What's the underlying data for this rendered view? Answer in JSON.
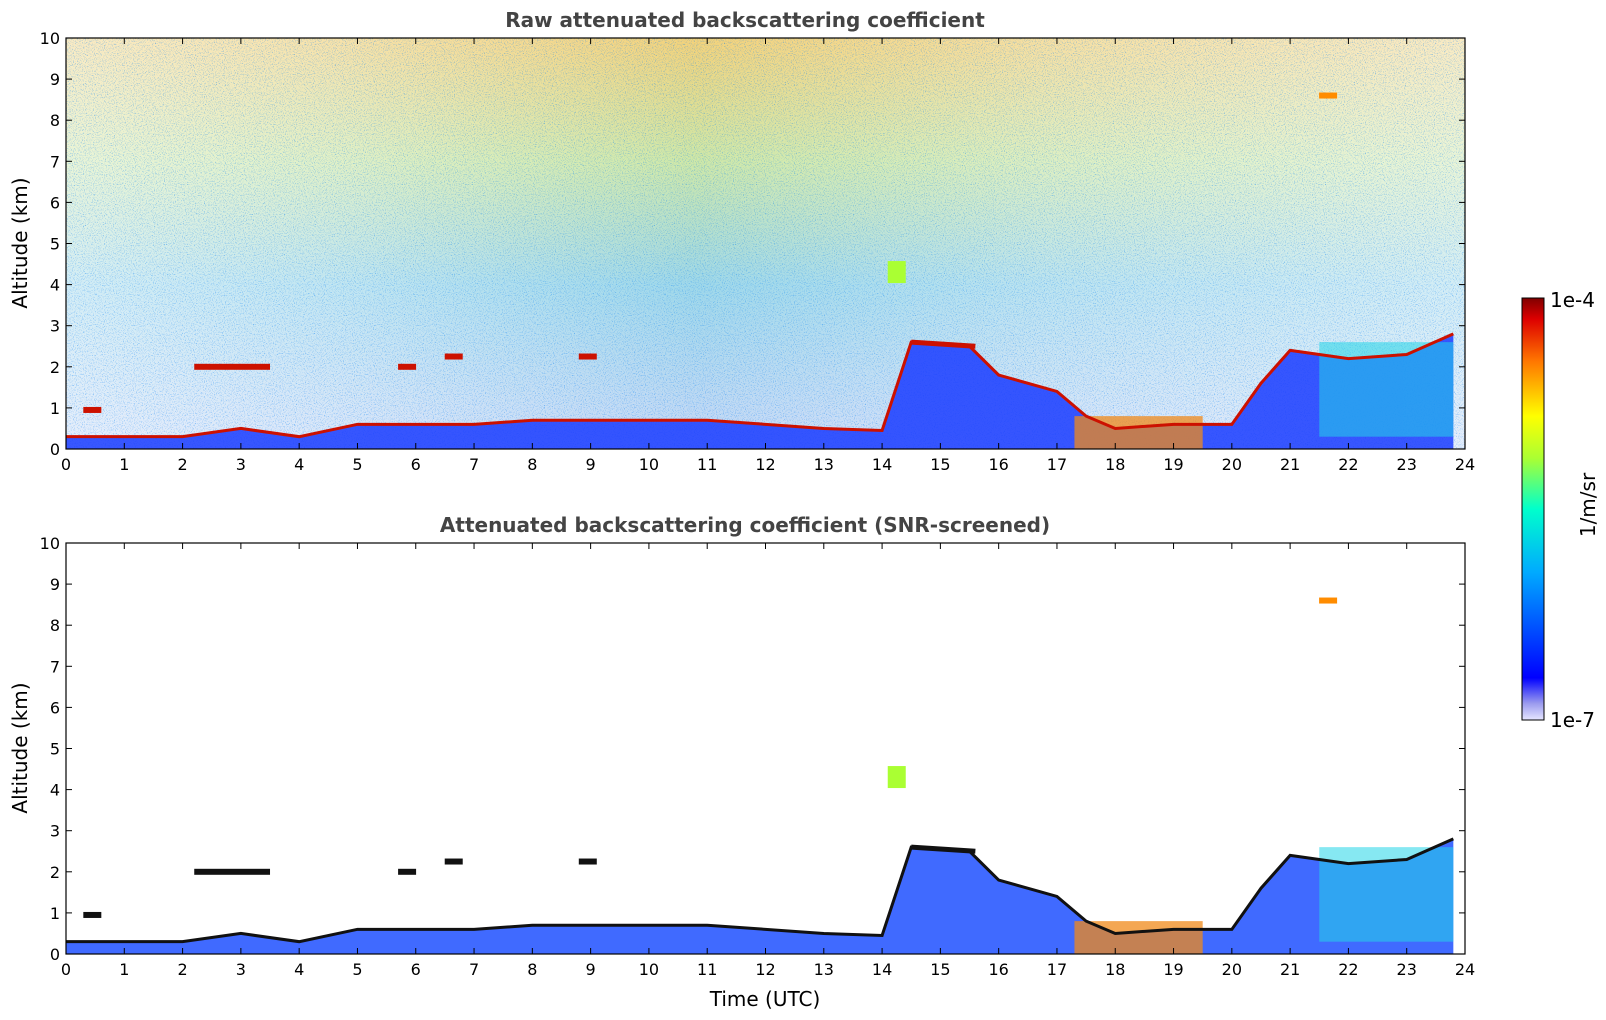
{
  "chart_data": [
    {
      "type": "heatmap",
      "title": "Raw attenuated backscattering coefficient",
      "xlabel": "",
      "ylabel": "Altitude (km)",
      "xlim": [
        0,
        24
      ],
      "ylim": [
        0,
        10
      ],
      "xticks": [
        0,
        1,
        2,
        3,
        4,
        5,
        6,
        7,
        8,
        9,
        10,
        11,
        12,
        13,
        14,
        15,
        16,
        17,
        18,
        19,
        20,
        21,
        22,
        23,
        24
      ],
      "yticks": [
        0,
        1,
        2,
        3,
        4,
        5,
        6,
        7,
        8,
        9,
        10
      ],
      "grid": false,
      "features": {
        "boundary_layer_top_km": [
          [
            0,
            0.3
          ],
          [
            1,
            0.3
          ],
          [
            2,
            0.3
          ],
          [
            3,
            0.5
          ],
          [
            4,
            0.3
          ],
          [
            5,
            0.6
          ],
          [
            6,
            0.6
          ],
          [
            7,
            0.6
          ],
          [
            8,
            0.7
          ],
          [
            9,
            0.7
          ],
          [
            10,
            0.7
          ],
          [
            11,
            0.7
          ],
          [
            12,
            0.6
          ],
          [
            13,
            0.5
          ],
          [
            14,
            0.45
          ],
          [
            14.5,
            2.6
          ],
          [
            15.5,
            2.5
          ],
          [
            16,
            1.8
          ],
          [
            17,
            1.4
          ],
          [
            17.5,
            0.8
          ],
          [
            18,
            0.5
          ],
          [
            19,
            0.6
          ],
          [
            20,
            0.6
          ],
          [
            20.5,
            1.6
          ],
          [
            21,
            2.4
          ],
          [
            22,
            2.2
          ],
          [
            23,
            2.3
          ],
          [
            23.8,
            2.8
          ]
        ],
        "clouds_km": [
          [
            0.4,
            0.95
          ],
          [
            2.7,
            2.0
          ],
          [
            5.8,
            2.0
          ],
          [
            6.6,
            2.25
          ],
          [
            8.9,
            2.25
          ],
          [
            21.6,
            8.6
          ],
          [
            14.2,
            4.5
          ]
        ]
      }
    },
    {
      "type": "heatmap",
      "title": "Attenuated backscattering coefficient (SNR-screened)",
      "xlabel": "Time (UTC)",
      "ylabel": "Altitude (km)",
      "xlim": [
        0,
        24
      ],
      "ylim": [
        0,
        10
      ],
      "xticks": [
        0,
        1,
        2,
        3,
        4,
        5,
        6,
        7,
        8,
        9,
        10,
        11,
        12,
        13,
        14,
        15,
        16,
        17,
        18,
        19,
        20,
        21,
        22,
        23,
        24
      ],
      "yticks": [
        0,
        1,
        2,
        3,
        4,
        5,
        6,
        7,
        8,
        9,
        10
      ],
      "grid": false
    }
  ],
  "colorbar": {
    "max_label": "1e-4",
    "min_label": "1e-7",
    "unit_label": "1/m/sr",
    "colormap": "jet"
  }
}
